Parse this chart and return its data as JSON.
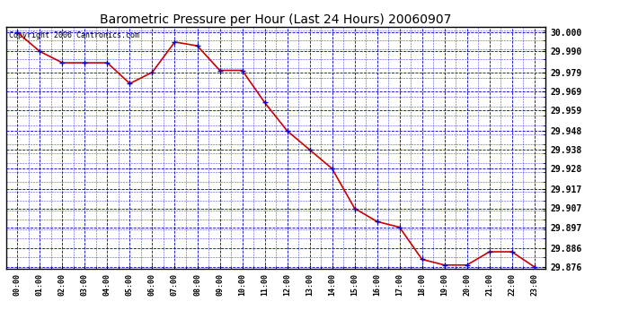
{
  "title": "Barometric Pressure per Hour (Last 24 Hours) 20060907",
  "copyright": "Copyright 2006 Cantronics.com",
  "hours": [
    "00:00",
    "01:00",
    "02:00",
    "03:00",
    "04:00",
    "05:00",
    "06:00",
    "07:00",
    "08:00",
    "09:00",
    "10:00",
    "11:00",
    "12:00",
    "13:00",
    "14:00",
    "15:00",
    "16:00",
    "17:00",
    "18:00",
    "19:00",
    "20:00",
    "21:00",
    "22:00",
    "23:00"
  ],
  "values": [
    30.0,
    29.99,
    29.984,
    29.984,
    29.984,
    29.973,
    29.979,
    29.995,
    29.993,
    29.98,
    29.98,
    29.963,
    29.948,
    29.938,
    29.928,
    29.907,
    29.9,
    29.897,
    29.88,
    29.877,
    29.877,
    29.884,
    29.884,
    29.876
  ],
  "ylim_min": 29.875,
  "ylim_max": 30.003,
  "yticks": [
    30.0,
    29.99,
    29.979,
    29.969,
    29.959,
    29.948,
    29.938,
    29.928,
    29.917,
    29.907,
    29.897,
    29.886,
    29.876
  ],
  "line_color": "#cc0000",
  "marker_color": "#0000cc",
  "background_color": "#ffffff",
  "grid_color": "#0000cc",
  "title_color": "#000000",
  "copyright_color": "#000000",
  "title_fontsize": 10,
  "copyright_fontsize": 6,
  "tick_fontsize": 7,
  "xtick_fontsize": 6
}
